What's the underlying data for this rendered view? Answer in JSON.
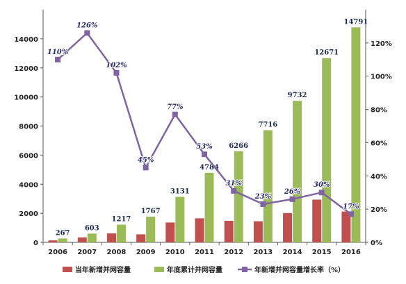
{
  "chart_data": {
    "type": "bar+line",
    "categories": [
      "2006",
      "2007",
      "2008",
      "2009",
      "2010",
      "2011",
      "2012",
      "2013",
      "2014",
      "2015",
      "2016"
    ],
    "series": [
      {
        "name": "当年新增并网容量",
        "type": "bar",
        "axis": "left",
        "color": "#c0504d",
        "values": [
          134,
          336,
          614,
          550,
          1364,
          1653,
          1482,
          1450,
          2016,
          2939,
          2120
        ]
      },
      {
        "name": "年底累计并网容量",
        "type": "bar",
        "axis": "left",
        "color": "#9bbb59",
        "values": [
          267,
          603,
          1217,
          1767,
          3131,
          4784,
          6266,
          7716,
          9732,
          12671,
          14791
        ],
        "labels": [
          "267",
          "603",
          "1217",
          "1767",
          "3131",
          "4784",
          "6266",
          "7716",
          "9732",
          "12671",
          "14791"
        ]
      },
      {
        "name": "年新增并网容量增长率（%）",
        "type": "line",
        "axis": "right",
        "color": "#8064a2",
        "values": [
          110,
          126,
          102,
          45,
          77,
          53,
          31,
          23,
          26,
          30,
          17
        ],
        "labels": [
          "110%",
          "126%",
          "102%",
          "45%",
          "77%",
          "53%",
          "31%",
          "23%",
          "26%",
          "30%",
          "17%"
        ]
      }
    ],
    "y_left": {
      "min": 0,
      "max": 16000,
      "ticks": [
        0,
        2000,
        4000,
        6000,
        8000,
        10000,
        12000,
        14000
      ]
    },
    "y_right": {
      "min": 0,
      "max": 140,
      "ticks": [
        0,
        20,
        40,
        60,
        80,
        100,
        120
      ],
      "tick_labels": [
        "0%",
        "20%",
        "40%",
        "60%",
        "80%",
        "100%",
        "120%"
      ]
    },
    "legend_position": "bottom",
    "grid": false
  }
}
